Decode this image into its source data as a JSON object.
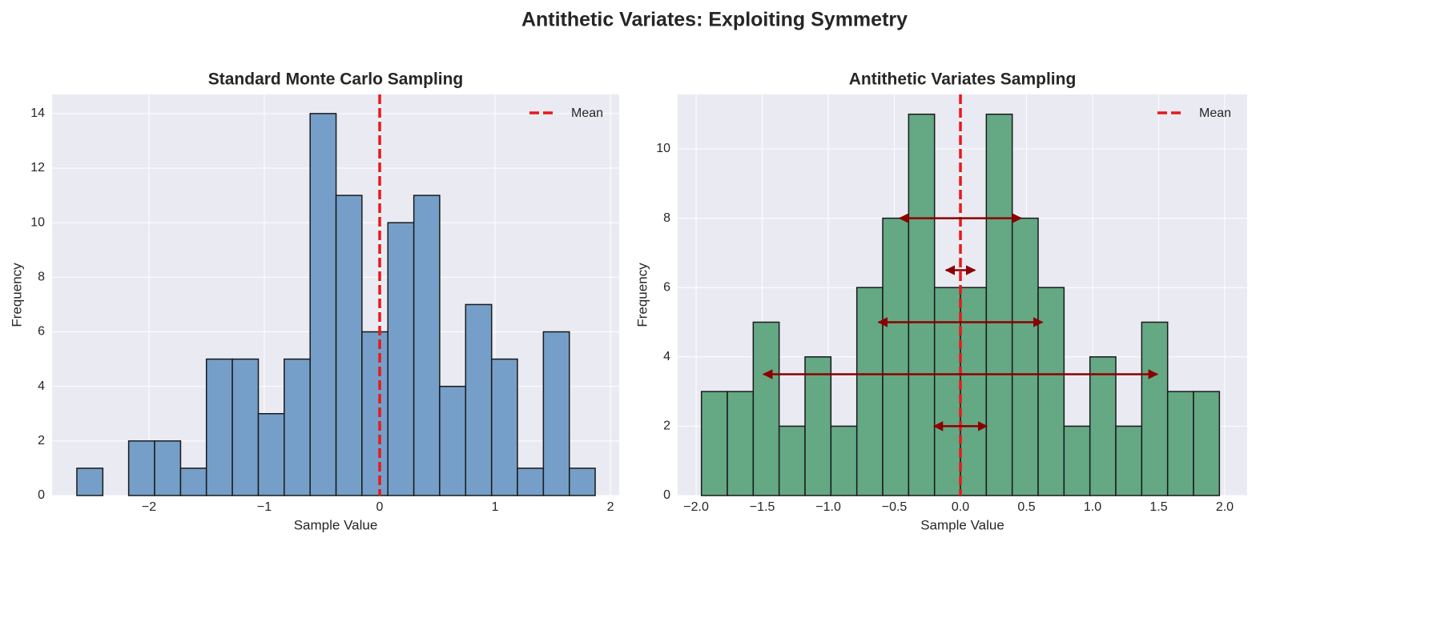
{
  "title": "Antithetic Variates: Exploiting Symmetry",
  "chart_data": [
    {
      "type": "histogram",
      "title": "Standard Monte Carlo Sampling",
      "xlabel": "Sample Value",
      "ylabel": "Frequency",
      "bins": [
        -2.625,
        -2.4,
        -2.176,
        -1.951,
        -1.726,
        -1.502,
        -1.277,
        -1.052,
        -0.828,
        -0.603,
        -0.378,
        -0.154,
        0.071,
        0.296,
        0.52,
        0.745,
        0.97,
        1.194,
        1.419,
        1.644,
        1.868
      ],
      "values": [
        1,
        0,
        2,
        2,
        1,
        5,
        5,
        3,
        5,
        14,
        11,
        6,
        10,
        11,
        4,
        7,
        5,
        1,
        6,
        1
      ],
      "color": "#759fc8",
      "edgecolor": "#1a1a1a",
      "mean": {
        "name": "Mean",
        "value": 0,
        "color": "#e8191a"
      },
      "legend": "upper right",
      "grid": true,
      "xlim": [
        -2.84,
        2.076
      ],
      "ylim": [
        0,
        14.7
      ],
      "xticks": [
        {
          "value": -2,
          "label": "−2"
        },
        {
          "value": -1,
          "label": "−1"
        },
        0,
        1,
        2
      ],
      "yticks": [
        0,
        2,
        4,
        6,
        8,
        10,
        12,
        14
      ]
    },
    {
      "type": "histogram",
      "title": "Antithetic Variates Sampling",
      "xlabel": "Sample Value",
      "ylabel": "Frequency",
      "bins": [
        -1.96,
        -1.764,
        -1.568,
        -1.372,
        -1.176,
        -0.98,
        -0.784,
        -0.588,
        -0.392,
        -0.196,
        0,
        0.196,
        0.392,
        0.588,
        0.784,
        0.98,
        1.176,
        1.372,
        1.568,
        1.764,
        1.96
      ],
      "values": [
        3,
        3,
        5,
        2,
        4,
        2,
        6,
        8,
        11,
        6,
        6,
        11,
        8,
        6,
        2,
        4,
        2,
        5,
        3,
        3
      ],
      "color": "#64a884",
      "edgecolor": "#1a1a1a",
      "mean": {
        "name": "Mean",
        "value": 0,
        "color": "#e8191a"
      },
      "arrows": [
        {
          "x": [
            -0.46,
            0.46
          ],
          "y": 8
        },
        {
          "x": [
            -0.11,
            0.11
          ],
          "y": 6.5
        },
        {
          "x": [
            -0.62,
            0.62
          ],
          "y": 5
        },
        {
          "x": [
            -1.49,
            1.49
          ],
          "y": 3.5
        },
        {
          "x": [
            -0.2,
            0.2
          ],
          "y": 2
        }
      ],
      "arrow_color": "#8b0000",
      "legend": "upper right",
      "grid": true,
      "xlim": [
        -2.14,
        2.17
      ],
      "ylim": [
        0,
        11.57
      ],
      "xticks": [
        {
          "value": -2,
          "label": "−2.0"
        },
        {
          "value": -1.5,
          "label": "−1.5"
        },
        {
          "value": -1,
          "label": "−1.0"
        },
        {
          "value": -0.5,
          "label": "−0.5"
        },
        {
          "value": 0,
          "label": "0.0"
        },
        {
          "value": 0.5,
          "label": "0.5"
        },
        {
          "value": 1,
          "label": "1.0"
        },
        {
          "value": 1.5,
          "label": "1.5"
        },
        {
          "value": 2,
          "label": "2.0"
        }
      ],
      "yticks": [
        0,
        2,
        4,
        6,
        8,
        10
      ]
    }
  ]
}
